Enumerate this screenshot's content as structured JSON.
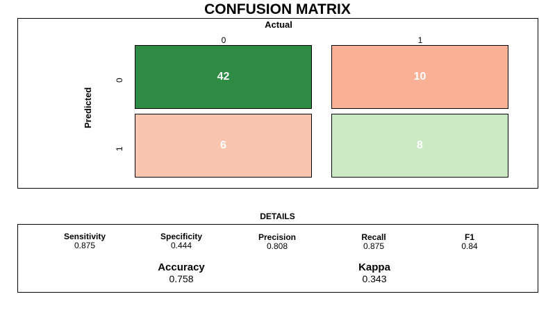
{
  "title": "CONFUSION MATRIX",
  "chart_data": {
    "type": "heatmap",
    "title": "CONFUSION MATRIX",
    "xlabel": "Actual",
    "ylabel": "Predicted",
    "x_ticks": [
      "0",
      "1"
    ],
    "y_ticks": [
      "0",
      "1"
    ],
    "values": [
      [
        42,
        10
      ],
      [
        6,
        8
      ]
    ],
    "colors": [
      [
        "#2e8b44",
        "#f8b195"
      ],
      [
        "#fac5ae",
        "#cbe9c3"
      ]
    ]
  },
  "details": {
    "title": "DETAILS",
    "metrics": [
      {
        "name": "Sensitivity",
        "value": "0.875"
      },
      {
        "name": "Specificity",
        "value": "0.444"
      },
      {
        "name": "Precision",
        "value": "0.808"
      },
      {
        "name": "Recall",
        "value": "0.875"
      },
      {
        "name": "F1",
        "value": "0.84"
      }
    ],
    "accuracy": {
      "name": "Accuracy",
      "value": "0.758"
    },
    "kappa": {
      "name": "Kappa",
      "value": "0.343"
    }
  }
}
